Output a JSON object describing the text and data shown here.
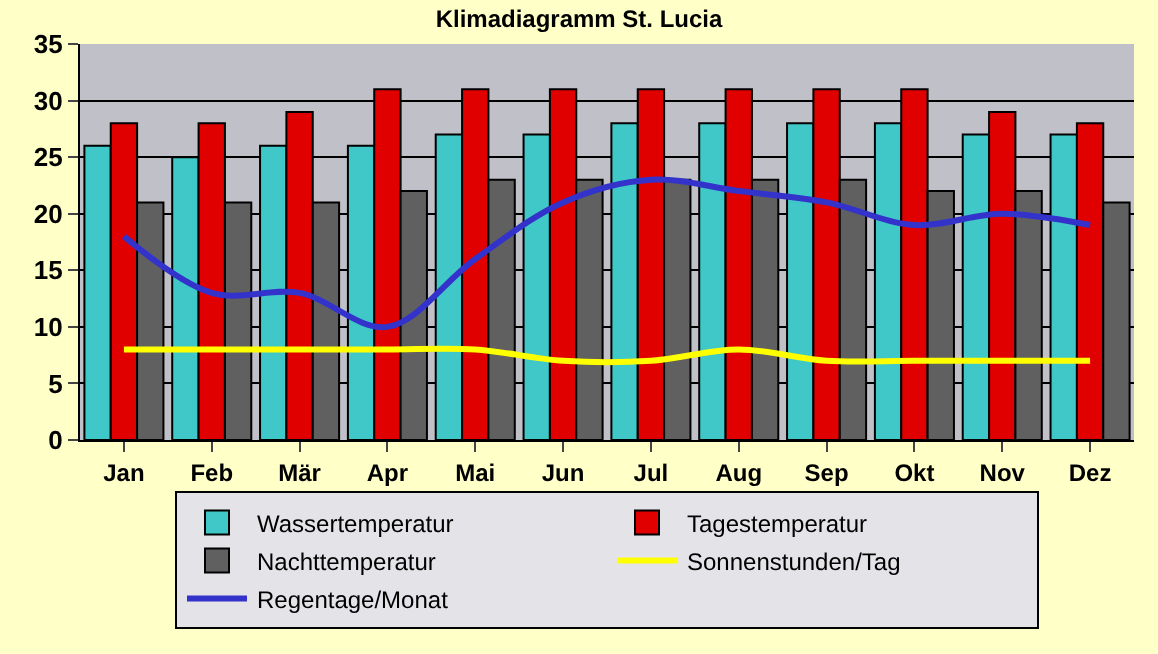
{
  "chart_data": {
    "type": "bar",
    "title": "Klimadiagramm St. Lucia",
    "categories": [
      "Jan",
      "Feb",
      "Mär",
      "Apr",
      "Mai",
      "Jun",
      "Jul",
      "Aug",
      "Sep",
      "Okt",
      "Nov",
      "Dez"
    ],
    "series": [
      {
        "name": "Wassertemperatur",
        "color": "#40c8c8",
        "values": [
          26,
          25,
          26,
          26,
          27,
          27,
          28,
          28,
          28,
          28,
          27,
          27
        ]
      },
      {
        "name": "Tagestemperatur",
        "color": "#e00000",
        "values": [
          28,
          28,
          29,
          31,
          31,
          31,
          31,
          31,
          31,
          31,
          29,
          28
        ]
      },
      {
        "name": "Nachttemperatur",
        "color": "#606060",
        "values": [
          21,
          21,
          21,
          22,
          23,
          23,
          23,
          23,
          23,
          22,
          22,
          21
        ]
      },
      {
        "name": "Sonnenstunden/Tag",
        "type": "line",
        "color": "#ffff00",
        "values": [
          8,
          8,
          8,
          8,
          8,
          7,
          7,
          8,
          7,
          7,
          7,
          7
        ]
      },
      {
        "name": "Regentage/Monat",
        "type": "line",
        "color": "#3333cc",
        "values": [
          18,
          13,
          13,
          10,
          16,
          21,
          23,
          22,
          21,
          19,
          20,
          19
        ]
      }
    ],
    "ylim": [
      0,
      35
    ],
    "yticks": [
      0,
      5,
      10,
      15,
      20,
      25,
      30,
      35
    ],
    "grid": "y",
    "legend": "bottom",
    "marker": "none"
  }
}
